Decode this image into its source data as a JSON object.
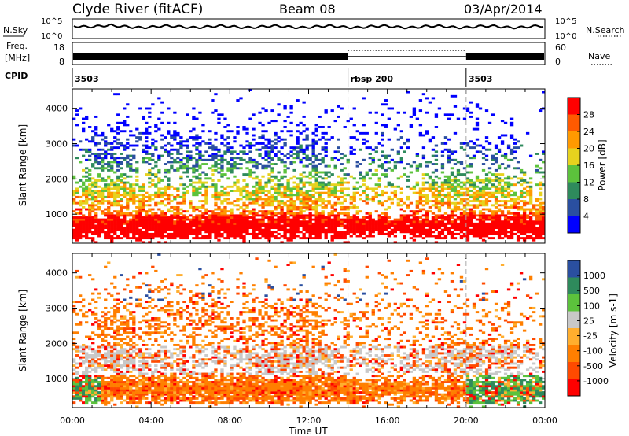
{
  "header": {
    "station": "Clyde River (fitACF)",
    "beam": "Beam 08",
    "date": "03/Apr/2014"
  },
  "top_panels": {
    "nsky_label": "N.Sky",
    "nsearch_label": "N.Search",
    "noise_ticks": [
      "10^5",
      "10^0"
    ],
    "freq_label_line1": "Freq.",
    "freq_label_line2": "[MHz]",
    "freq_ticks": [
      "18",
      "8"
    ],
    "nave_label": "Nave",
    "nave_ticks": [
      "60",
      "0"
    ],
    "cpid_label": "CPID",
    "cpid_segments": [
      {
        "label": "3503",
        "start_hour": 0,
        "end_hour": 14
      },
      {
        "label": "rbsp 200",
        "start_hour": 14,
        "end_hour": 20
      },
      {
        "label": "3503",
        "start_hour": 20,
        "end_hour": 24
      }
    ]
  },
  "colors": {
    "scale": [
      "#0000ff",
      "#2a4fa0",
      "#2e8a5c",
      "#5cc23c",
      "#e6d21e",
      "#ff9a00",
      "#ff5a00",
      "#ff0000"
    ],
    "velocity_scale": [
      "#ff0000",
      "#ff4a00",
      "#ff7f00",
      "#ffae2e",
      "#c8c8c8",
      "#5cc23c",
      "#2e8a5c",
      "#2a4fa0"
    ]
  },
  "chart_data": [
    {
      "type": "heatmap",
      "title": "Power",
      "ylabel": "Slant Range [km]",
      "xlabel": "Time UT",
      "x_ticks": [
        "00:00",
        "04:00",
        "08:00",
        "12:00",
        "16:00",
        "20:00",
        "00:00"
      ],
      "y_ticks": [
        "1000",
        "2000",
        "3000",
        "4000"
      ],
      "xlim_hours": [
        0,
        24
      ],
      "ylim_km": [
        180,
        4550
      ],
      "colorbar_label": "Power [dB]",
      "colorbar_ticks": [
        "28",
        "24",
        "20",
        "16",
        "12",
        "8",
        "4"
      ],
      "colorbar_range": [
        0,
        30
      ],
      "mode_change_hours": [
        14,
        20
      ]
    },
    {
      "type": "heatmap",
      "title": "Velocity",
      "ylabel": "Slant Range [km]",
      "xlabel": "Time UT",
      "x_ticks": [
        "00:00",
        "04:00",
        "08:00",
        "12:00",
        "16:00",
        "20:00",
        "00:00"
      ],
      "y_ticks": [
        "1000",
        "2000",
        "3000",
        "4000"
      ],
      "xlim_hours": [
        0,
        24
      ],
      "ylim_km": [
        180,
        4550
      ],
      "colorbar_label": "Velocity [m s-1]",
      "colorbar_ticks": [
        "1000",
        "500",
        "100",
        "25",
        "-25",
        "-100",
        "-500",
        "-1000"
      ],
      "mode_change_hours": [
        14,
        20
      ]
    }
  ]
}
